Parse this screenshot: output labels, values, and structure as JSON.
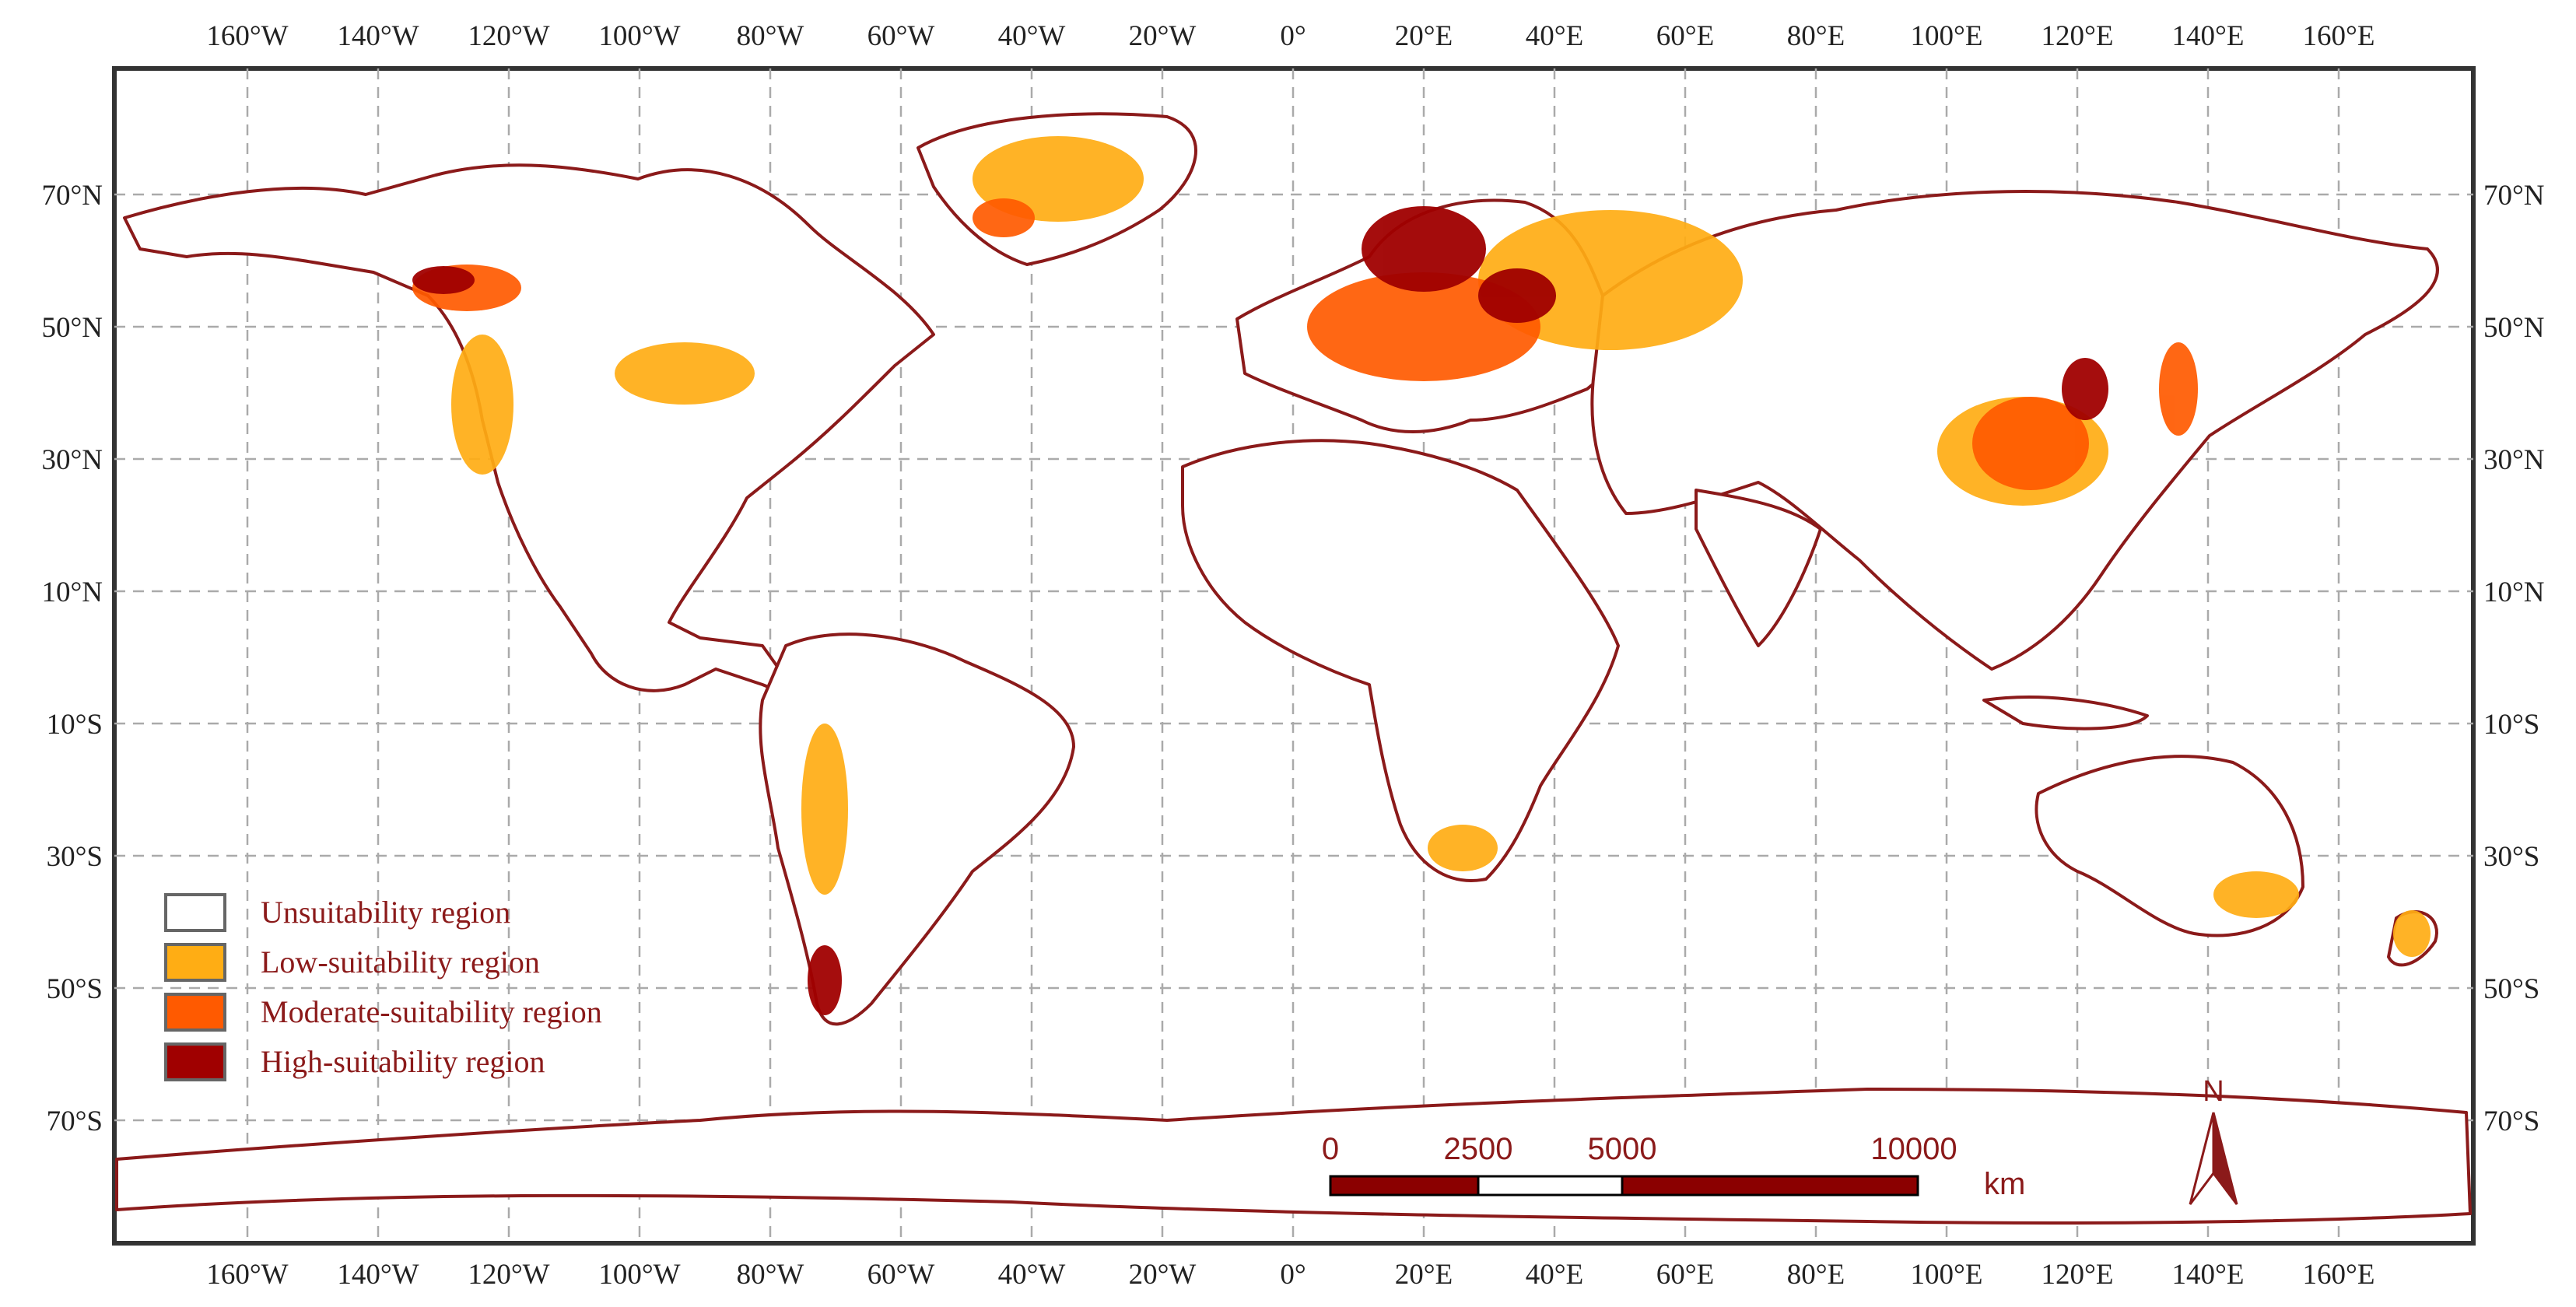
{
  "map": {
    "top_longitude_labels": [
      "160°W",
      "140°W",
      "120°W",
      "100°W",
      "80°W",
      "60°W",
      "40°W",
      "20°W",
      "0°",
      "20°E",
      "40°E",
      "60°E",
      "80°E",
      "100°E",
      "120°E",
      "140°E",
      "160°E"
    ],
    "bottom_longitude_labels": [
      "160°W",
      "140°W",
      "120°W",
      "100°W",
      "80°W",
      "60°W",
      "40°W",
      "20°W",
      "0°",
      "20°E",
      "40°E",
      "60°E",
      "80°E",
      "100°E",
      "120°E",
      "140°E",
      "160°E"
    ],
    "left_latitude_labels": [
      "70°N",
      "50°N",
      "30°N",
      "10°N",
      "10°S",
      "30°S",
      "50°S",
      "70°S"
    ],
    "right_latitude_labels": [
      "70°N",
      "50°N",
      "30°N",
      "10°N",
      "10°S",
      "30°S",
      "50°S",
      "70°S"
    ]
  },
  "legend": {
    "items": [
      {
        "label": "Unsuitability region",
        "color": "#ffffff"
      },
      {
        "label": "Low-suitability region",
        "color": "#ffad14"
      },
      {
        "label": "Moderate-suitability region",
        "color": "#ff5a00"
      },
      {
        "label": "High-suitability region",
        "color": "#a00000"
      }
    ]
  },
  "scale_bar": {
    "labels": [
      "0",
      "2500",
      "5000",
      "10000"
    ],
    "unit": "km"
  },
  "north_arrow": {
    "label": "N"
  },
  "colors": {
    "border": "#8b1a1a",
    "frame": "#333333",
    "grid": "#aaaaaa",
    "low": "#ffad14",
    "moderate": "#ff5a00",
    "high": "#a00000"
  }
}
